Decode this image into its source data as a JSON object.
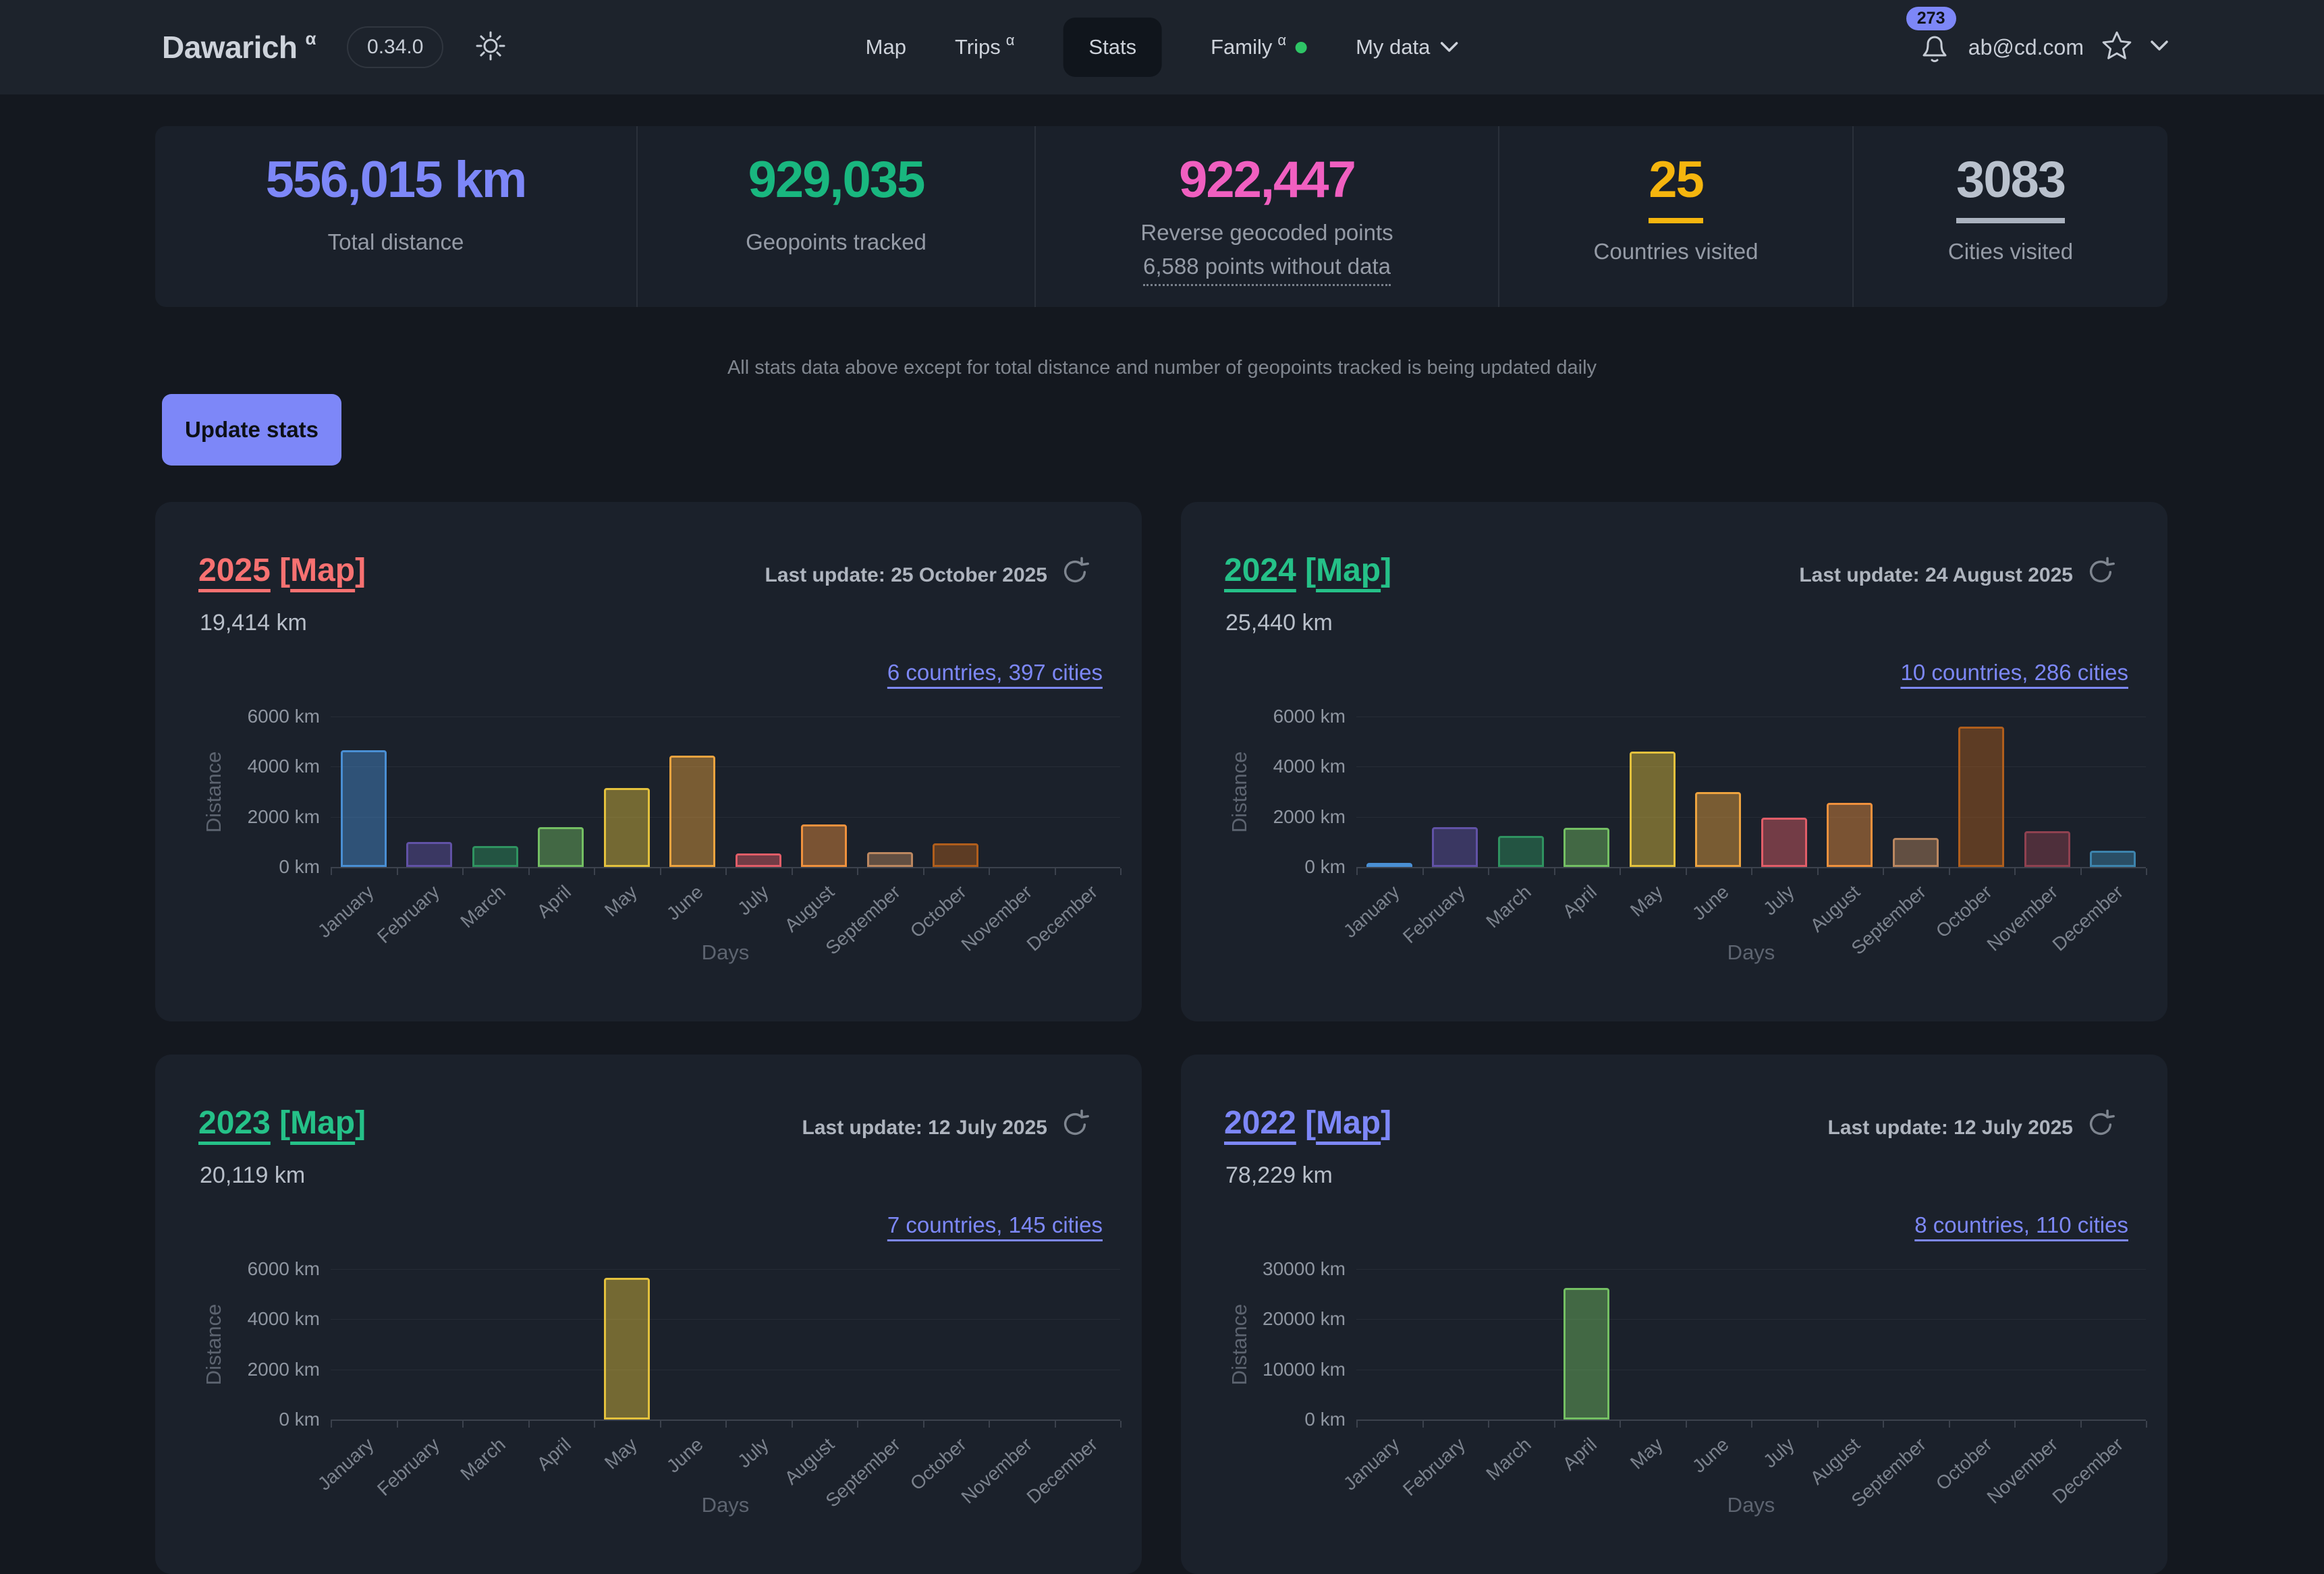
{
  "navbar": {
    "logo": "Dawarich",
    "logo_sup": "α",
    "version": "0.34.0",
    "items": [
      {
        "label": "Map"
      },
      {
        "label": "Trips",
        "sup": "α"
      },
      {
        "label": "Stats",
        "active": true
      },
      {
        "label": "Family",
        "sup": "α",
        "status_dot_color": "#2ec566"
      },
      {
        "label": "My data",
        "has_chevron": true
      }
    ],
    "notification_count": "273",
    "email": "ab@cd.com"
  },
  "stats": [
    {
      "value": "556,015 km",
      "label": "Total distance",
      "color": "#7d87f8"
    },
    {
      "value": "929,035",
      "label": "Geopoints tracked",
      "color": "#19b77f"
    },
    {
      "value": "922,447",
      "label": "Reverse geocoded points",
      "sub": "6,588 points without data",
      "color": "#f05fc0"
    },
    {
      "value": "25",
      "label": "Countries visited",
      "color": "#f5b50e",
      "underline_color": "#f5b50e"
    },
    {
      "value": "3083",
      "label": "Cities visited",
      "color": "#b9c1cd",
      "underline_color": "#aab2bf"
    }
  ],
  "note": "All stats data above except for total distance and number of geopoints tracked is being updated daily",
  "toolbar": {
    "update_label": "Update stats"
  },
  "chart_common": {
    "months": [
      "January",
      "February",
      "March",
      "April",
      "May",
      "June",
      "July",
      "August",
      "September",
      "October",
      "November",
      "December"
    ],
    "month_colors": [
      "#4a8fd4",
      "#6152a6",
      "#2f9360",
      "#74bf63",
      "#e3c13d",
      "#eda33f",
      "#e15d68",
      "#ef913d",
      "#bb8760",
      "#b05e1c",
      "#8f4150",
      "#3d84ad"
    ],
    "fill_opacity": 0.45,
    "ylabel": "Distance",
    "xlabel": "Days",
    "grid": true,
    "legend": "none"
  },
  "chart_data": [
    {
      "type": "bar",
      "year": "2025",
      "map_label": "Map",
      "title_color": "#f87171",
      "last_update": "Last update: 25 October 2025",
      "distance": "19,414 km",
      "link": "6 countries, 397 cities",
      "ylim": [
        0,
        6000
      ],
      "yticks": [
        0,
        2000,
        4000,
        6000
      ],
      "ytick_suffix": " km",
      "values": [
        4650,
        1000,
        830,
        1580,
        3150,
        4450,
        550,
        1700,
        580,
        950,
        0,
        0
      ]
    },
    {
      "type": "bar",
      "year": "2024",
      "map_label": "Map",
      "title_color": "#25c188",
      "last_update": "Last update: 24 August 2025",
      "distance": "25,440 km",
      "link": "10 countries, 286 cities",
      "ylim": [
        0,
        6000
      ],
      "yticks": [
        0,
        2000,
        4000,
        6000
      ],
      "ytick_suffix": " km",
      "values": [
        150,
        1590,
        1240,
        1560,
        4600,
        2990,
        1960,
        2560,
        1160,
        5600,
        1430,
        650
      ]
    },
    {
      "type": "bar",
      "year": "2023",
      "map_label": "Map",
      "title_color": "#25c188",
      "last_update": "Last update: 12 July 2025",
      "distance": "20,119 km",
      "link": "7 countries, 145 cities",
      "ylim": [
        0,
        6000
      ],
      "yticks": [
        0,
        2000,
        4000,
        6000
      ],
      "ytick_suffix": " km",
      "values": [
        null,
        null,
        null,
        null,
        5650,
        null,
        null,
        null,
        null,
        null,
        null,
        null
      ],
      "partially_visible": true
    },
    {
      "type": "bar",
      "year": "2022",
      "map_label": "Map",
      "title_color": "#7d87f8",
      "last_update": "Last update: 12 July 2025",
      "distance": "78,229 km",
      "link": "8 countries, 110 cities",
      "ylim": [
        0,
        30000
      ],
      "yticks": [
        0,
        10000,
        20000,
        30000
      ],
      "ytick_suffix": " km",
      "values": [
        null,
        null,
        null,
        26200,
        null,
        null,
        null,
        null,
        null,
        null,
        null,
        null
      ],
      "partially_visible": true
    }
  ]
}
